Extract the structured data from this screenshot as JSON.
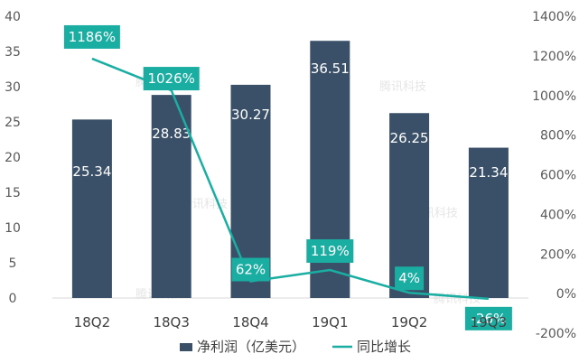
{
  "chart_data": {
    "type": "bar",
    "categories": [
      "18Q2",
      "18Q3",
      "18Q4",
      "19Q1",
      "19Q2",
      "19Q3"
    ],
    "series": [
      {
        "name": "净利润（亿美元）",
        "type": "bar",
        "axis": "left",
        "values": [
          25.34,
          28.83,
          30.27,
          36.51,
          26.25,
          21.34
        ],
        "labels": [
          "25.34",
          "28.83",
          "30.27",
          "36.51",
          "26.25",
          "21.34"
        ],
        "color": "#3a5068"
      },
      {
        "name": "同比增长",
        "type": "line",
        "axis": "right",
        "values": [
          1186,
          1026,
          62,
          119,
          4,
          -26
        ],
        "labels": [
          "1186%",
          "1026%",
          "62%",
          "119%",
          "4%",
          "-26%"
        ],
        "color": "#1aaea3"
      }
    ],
    "left_axis": {
      "ylim": [
        0,
        40
      ],
      "ticks": [
        "0",
        "5",
        "10",
        "15",
        "20",
        "25",
        "30",
        "35",
        "40"
      ]
    },
    "right_axis": {
      "ylim": [
        -200,
        1400
      ],
      "ticks": [
        "-200%",
        "0%",
        "200%",
        "400%",
        "600%",
        "800%",
        "1000%",
        "1200%",
        "1400%"
      ]
    },
    "grid": false,
    "legend": "bottom"
  },
  "watermark": "腾讯科技"
}
